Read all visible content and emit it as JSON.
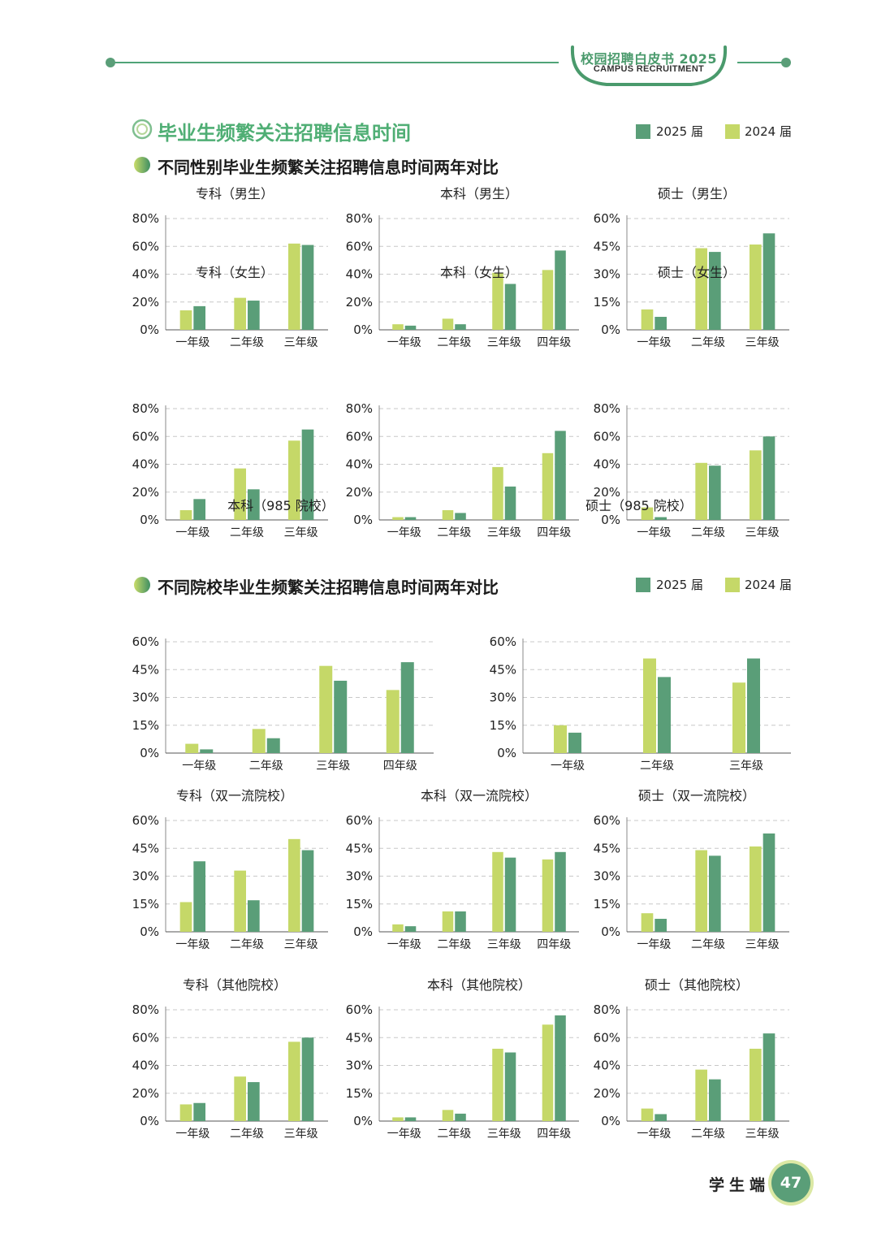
{
  "header": {
    "title": "校园招聘白皮书 2025",
    "subtitle": "CAMPUS RECRUITMENT"
  },
  "main_title": "毕业生频繁关注招聘信息时间",
  "legend": {
    "y2025": "2025 届",
    "y2024": "2024 届"
  },
  "colors": {
    "y2025": "#5a9e78",
    "y2024": "#c5d868",
    "accent": "#4fae74"
  },
  "section1": {
    "title": "不同性别毕业生频繁关注招聘信息时间两年对比"
  },
  "section2": {
    "title": "不同院校毕业生频繁关注招聘信息时间两年对比"
  },
  "chart_data": [
    {
      "id": "c1",
      "type": "bar",
      "title": "专科（男生）",
      "categories": [
        "一年级",
        "二年级",
        "三年级"
      ],
      "yticks": [
        "0%",
        "20%",
        "40%",
        "60%",
        "80%"
      ],
      "ylim": [
        0,
        80
      ],
      "series": [
        {
          "name": "2024 届",
          "values": [
            14,
            23,
            62
          ]
        },
        {
          "name": "2025 届",
          "values": [
            17,
            21,
            61
          ]
        }
      ]
    },
    {
      "id": "c2",
      "type": "bar",
      "title": "本科（男生）",
      "categories": [
        "一年级",
        "二年级",
        "三年级",
        "四年级"
      ],
      "yticks": [
        "0%",
        "20%",
        "40%",
        "60%",
        "80%"
      ],
      "ylim": [
        0,
        80
      ],
      "series": [
        {
          "name": "2024 届",
          "values": [
            4,
            8,
            41,
            43
          ]
        },
        {
          "name": "2025 届",
          "values": [
            3,
            4,
            33,
            57
          ]
        }
      ]
    },
    {
      "id": "c3",
      "type": "bar",
      "title": "硕士（男生）",
      "categories": [
        "一年级",
        "二年级",
        "三年级"
      ],
      "yticks": [
        "0%",
        "15%",
        "30%",
        "45%",
        "60%"
      ],
      "ylim": [
        0,
        60
      ],
      "series": [
        {
          "name": "2024 届",
          "values": [
            11,
            44,
            46
          ]
        },
        {
          "name": "2025 届",
          "values": [
            7,
            42,
            52
          ]
        }
      ]
    },
    {
      "id": "c4",
      "type": "bar",
      "title": "专科（女生）",
      "categories": [
        "一年级",
        "二年级",
        "三年级"
      ],
      "yticks": [
        "0%",
        "20%",
        "40%",
        "60%",
        "80%"
      ],
      "ylim": [
        0,
        80
      ],
      "series": [
        {
          "name": "2024 届",
          "values": [
            7,
            37,
            57
          ]
        },
        {
          "name": "2025 届",
          "values": [
            15,
            22,
            65
          ]
        }
      ]
    },
    {
      "id": "c5",
      "type": "bar",
      "title": "本科（女生）",
      "categories": [
        "一年级",
        "二年级",
        "三年级",
        "四年级"
      ],
      "yticks": [
        "0%",
        "20%",
        "40%",
        "60%",
        "80%"
      ],
      "ylim": [
        0,
        80
      ],
      "series": [
        {
          "name": "2024 届",
          "values": [
            2,
            7,
            38,
            48
          ]
        },
        {
          "name": "2025 届",
          "values": [
            2,
            5,
            24,
            64
          ]
        }
      ]
    },
    {
      "id": "c6",
      "type": "bar",
      "title": "硕士（女生）",
      "categories": [
        "一年级",
        "二年级",
        "三年级"
      ],
      "yticks": [
        "0%",
        "20%",
        "40%",
        "60%",
        "80%"
      ],
      "ylim": [
        0,
        80
      ],
      "series": [
        {
          "name": "2024 届",
          "values": [
            9,
            41,
            50
          ]
        },
        {
          "name": "2025 届",
          "values": [
            2,
            39,
            60
          ]
        }
      ]
    },
    {
      "id": "c7",
      "type": "bar",
      "title": "本科（985 院校）",
      "categories": [
        "一年级",
        "二年级",
        "三年级",
        "四年级"
      ],
      "yticks": [
        "0%",
        "15%",
        "30%",
        "45%",
        "60%"
      ],
      "ylim": [
        0,
        60
      ],
      "series": [
        {
          "name": "2024 届",
          "values": [
            5,
            13,
            47,
            34
          ]
        },
        {
          "name": "2025 届",
          "values": [
            2,
            8,
            39,
            49
          ]
        }
      ]
    },
    {
      "id": "c8",
      "type": "bar",
      "title": "硕士（985 院校）",
      "categories": [
        "一年级",
        "二年级",
        "三年级"
      ],
      "yticks": [
        "0%",
        "15%",
        "30%",
        "45%",
        "60%"
      ],
      "ylim": [
        0,
        60
      ],
      "series": [
        {
          "name": "2024 届",
          "values": [
            15,
            51,
            38
          ]
        },
        {
          "name": "2025 届",
          "values": [
            11,
            41,
            51
          ]
        }
      ]
    },
    {
      "id": "c9",
      "type": "bar",
      "title": "专科（双一流院校）",
      "categories": [
        "一年级",
        "二年级",
        "三年级"
      ],
      "yticks": [
        "0%",
        "15%",
        "30%",
        "45%",
        "60%"
      ],
      "ylim": [
        0,
        60
      ],
      "series": [
        {
          "name": "2024 届",
          "values": [
            16,
            33,
            50
          ]
        },
        {
          "name": "2025 届",
          "values": [
            38,
            17,
            44
          ]
        }
      ]
    },
    {
      "id": "c10",
      "type": "bar",
      "title": "本科（双一流院校）",
      "categories": [
        "一年级",
        "二年级",
        "三年级",
        "四年级"
      ],
      "yticks": [
        "0%",
        "15%",
        "30%",
        "45%",
        "60%"
      ],
      "ylim": [
        0,
        60
      ],
      "series": [
        {
          "name": "2024 届",
          "values": [
            4,
            11,
            43,
            39
          ]
        },
        {
          "name": "2025 届",
          "values": [
            3,
            11,
            40,
            43
          ]
        }
      ]
    },
    {
      "id": "c11",
      "type": "bar",
      "title": "硕士（双一流院校）",
      "categories": [
        "一年级",
        "二年级",
        "三年级"
      ],
      "yticks": [
        "0%",
        "15%",
        "30%",
        "45%",
        "60%"
      ],
      "ylim": [
        0,
        60
      ],
      "series": [
        {
          "name": "2024 届",
          "values": [
            10,
            44,
            46
          ]
        },
        {
          "name": "2025 届",
          "values": [
            7,
            41,
            53
          ]
        }
      ]
    },
    {
      "id": "c12",
      "type": "bar",
      "title": "专科（其他院校）",
      "categories": [
        "一年级",
        "二年级",
        "三年级"
      ],
      "yticks": [
        "0%",
        "20%",
        "40%",
        "60%",
        "80%"
      ],
      "ylim": [
        0,
        80
      ],
      "series": [
        {
          "name": "2024 届",
          "values": [
            12,
            32,
            57
          ]
        },
        {
          "name": "2025 届",
          "values": [
            13,
            28,
            60
          ]
        }
      ]
    },
    {
      "id": "c13",
      "type": "bar",
      "title": "本科（其他院校）",
      "categories": [
        "一年级",
        "二年级",
        "三年级",
        "四年级"
      ],
      "yticks": [
        "0%",
        "15%",
        "30%",
        "45%",
        "60%"
      ],
      "ylim": [
        0,
        60
      ],
      "series": [
        {
          "name": "2024 届",
          "values": [
            2,
            6,
            39,
            52
          ]
        },
        {
          "name": "2025 届",
          "values": [
            2,
            4,
            37,
            57
          ]
        }
      ]
    },
    {
      "id": "c14",
      "type": "bar",
      "title": "硕士（其他院校）",
      "categories": [
        "一年级",
        "二年级",
        "三年级"
      ],
      "yticks": [
        "0%",
        "20%",
        "40%",
        "60%",
        "80%"
      ],
      "ylim": [
        0,
        80
      ],
      "series": [
        {
          "name": "2024 届",
          "values": [
            9,
            37,
            52
          ]
        },
        {
          "name": "2025 届",
          "values": [
            5,
            30,
            63
          ]
        }
      ]
    }
  ],
  "footer": {
    "label": "学生端",
    "page": "47"
  }
}
